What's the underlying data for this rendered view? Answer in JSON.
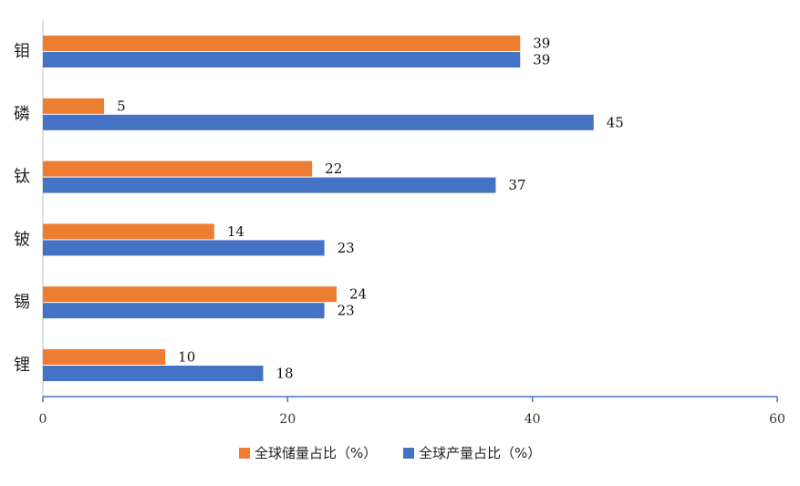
{
  "chart_data": {
    "type": "bar",
    "orientation": "horizontal",
    "categories": [
      "钼",
      "磷",
      "钛",
      "铍",
      "锡",
      "锂"
    ],
    "series": [
      {
        "name": "全球储量占比（%）",
        "color": "#ED7D31",
        "values": [
          39,
          5,
          22,
          14,
          24,
          10
        ]
      },
      {
        "name": "全球产量占比（%）",
        "color": "#4472C4",
        "values": [
          39,
          45,
          37,
          23,
          23,
          18
        ]
      }
    ],
    "xlim": [
      0,
      60
    ],
    "xticks": [
      0,
      20,
      40,
      60
    ],
    "grid": false,
    "legend_position": "bottom",
    "data_labels": true
  }
}
